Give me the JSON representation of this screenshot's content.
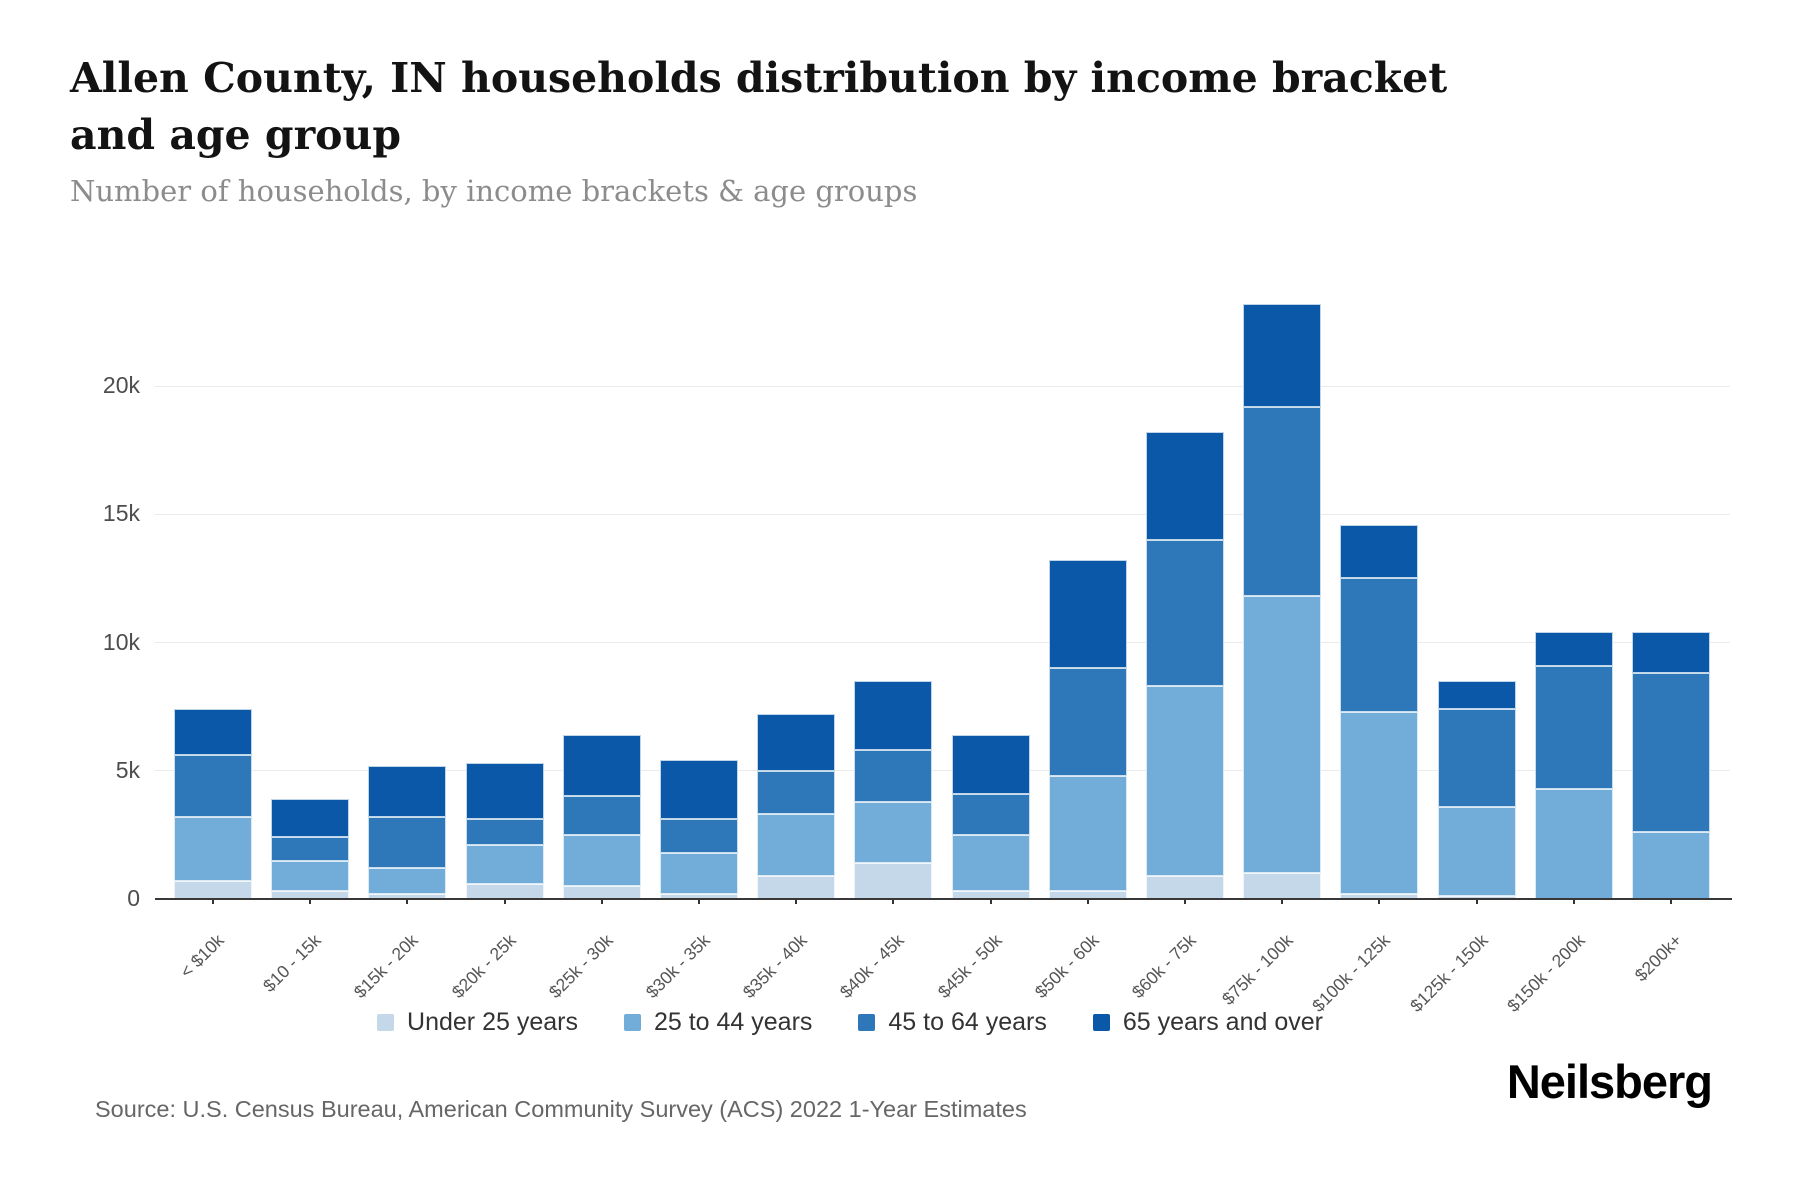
{
  "header": {
    "title": "Allen County, IN households distribution by income bracket and age group",
    "subtitle": "Number of households, by income brackets & age groups"
  },
  "footer": {
    "source": "Source: U.S. Census Bureau, American Community Survey (ACS) 2022 1-Year Estimates",
    "logo": "Neilsberg"
  },
  "chart_data": {
    "type": "bar",
    "stacked": true,
    "title": "Allen County, IN households distribution by income bracket and age group",
    "subtitle": "Number of households, by income brackets & age groups",
    "xlabel": "",
    "ylabel": "Number of households",
    "grid": true,
    "legend_position": "bottom",
    "ylim": [
      0,
      23500
    ],
    "y_ticks": [
      {
        "label": "0",
        "value": 0
      },
      {
        "label": "5k",
        "value": 5000
      },
      {
        "label": "10k",
        "value": 10000
      },
      {
        "label": "15k",
        "value": 15000
      },
      {
        "label": "20k",
        "value": 20000
      }
    ],
    "categories": [
      "< $10k",
      "$10 - 15k",
      "$15k - 20k",
      "$20k - 25k",
      "$25k - 30k",
      "$30k - 35k",
      "$35k - 40k",
      "$40k - 45k",
      "$45k - 50k",
      "$50k - 60k",
      "$60k - 75k",
      "$75k - 100k",
      "$100k - 125k",
      "$125k - 150k",
      "$150k - 200k",
      "$200k+"
    ],
    "series": [
      {
        "name": "Under 25 years",
        "color": "#c4d8ea",
        "values": [
          700,
          300,
          200,
          600,
          500,
          200,
          900,
          1400,
          300,
          300,
          900,
          1000,
          200,
          100,
          0,
          0
        ]
      },
      {
        "name": "25 to 44 years",
        "color": "#72acd8",
        "values": [
          2500,
          1200,
          1000,
          1500,
          2000,
          1600,
          2400,
          2400,
          2200,
          4500,
          7400,
          10800,
          7100,
          3500,
          4300,
          2600
        ]
      },
      {
        "name": "45 to 64 years",
        "color": "#2e77b8",
        "values": [
          2400,
          900,
          2000,
          1000,
          1500,
          1300,
          1700,
          2000,
          1600,
          4200,
          5700,
          7400,
          5200,
          3800,
          4800,
          6200
        ]
      },
      {
        "name": "65 years and over",
        "color": "#0b57a8",
        "values": [
          1800,
          1500,
          2000,
          2200,
          2400,
          2300,
          2200,
          2700,
          2300,
          4200,
          4200,
          4000,
          2100,
          1100,
          1300,
          1600
        ]
      }
    ],
    "totals": [
      7400,
      3900,
      5200,
      5300,
      6400,
      5400,
      7200,
      8500,
      6400,
      13200,
      18200,
      23200,
      14600,
      8500,
      10400,
      10400
    ]
  }
}
